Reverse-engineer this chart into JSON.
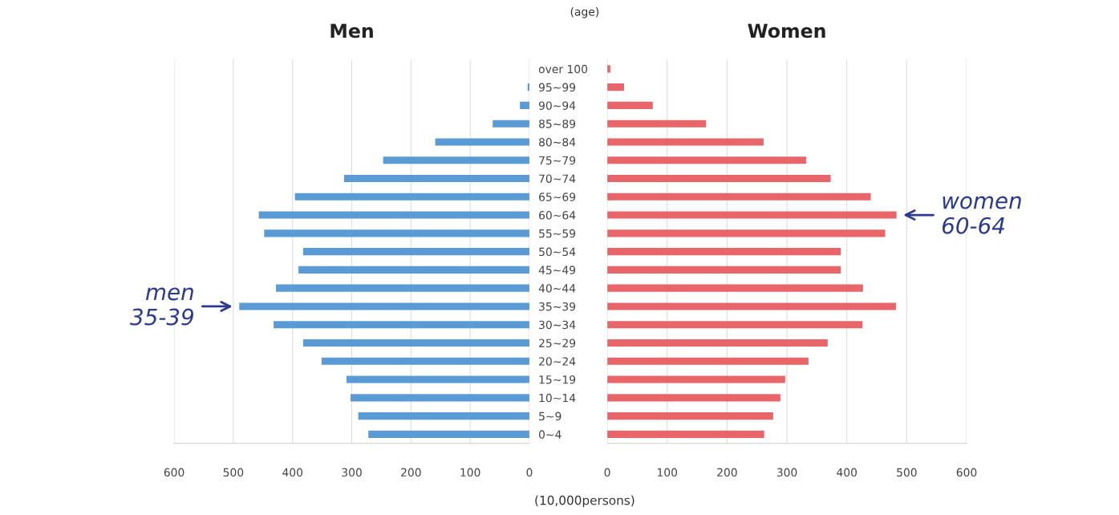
{
  "chart_data": [
    {
      "type": "bar",
      "orientation": "horizontal",
      "title": "Men",
      "categories": [
        "over 100",
        "95~99",
        "90~94",
        "85~89",
        "80~84",
        "75~79",
        "70~74",
        "65~69",
        "60~64",
        "55~59",
        "50~54",
        "45~49",
        "40~44",
        "35~39",
        "30~34",
        "25~29",
        "20~24",
        "15~19",
        "10~14",
        "5~9",
        "0~4"
      ],
      "values": [
        0,
        3,
        16,
        62,
        159,
        247,
        313,
        396,
        457,
        448,
        382,
        390,
        428,
        490,
        432,
        382,
        351,
        309,
        302,
        289,
        272
      ],
      "color": "#5b9bd5",
      "xlim": [
        600,
        0
      ],
      "xticks": [
        600,
        500,
        400,
        300,
        200,
        100,
        0
      ],
      "grid": "x",
      "annotations": [
        "(age)",
        "(10,000persons)",
        {
          "text": "men\n35-39",
          "x": 490,
          "y": "35~39"
        }
      ]
    },
    {
      "type": "bar",
      "orientation": "horizontal",
      "title": "Women",
      "categories": [
        "over 100",
        "95~99",
        "90~94",
        "85~89",
        "80~84",
        "75~79",
        "70~74",
        "65~69",
        "60~64",
        "55~59",
        "50~54",
        "45~49",
        "40~44",
        "35~39",
        "30~34",
        "25~29",
        "20~24",
        "15~19",
        "10~14",
        "5~9",
        "0~4"
      ],
      "values": [
        5,
        28,
        76,
        165,
        261,
        332,
        373,
        440,
        483,
        464,
        390,
        390,
        427,
        482,
        426,
        368,
        336,
        297,
        289,
        277,
        262
      ],
      "color": "#e8666a",
      "xlim": [
        0,
        600
      ],
      "xticks": [
        0,
        100,
        200,
        300,
        400,
        500,
        600
      ],
      "grid": "x",
      "tick_labels": "x",
      "annotations": [
        {
          "text": "women\n60-64",
          "x": 483,
          "y": "60~64"
        }
      ]
    }
  ]
}
